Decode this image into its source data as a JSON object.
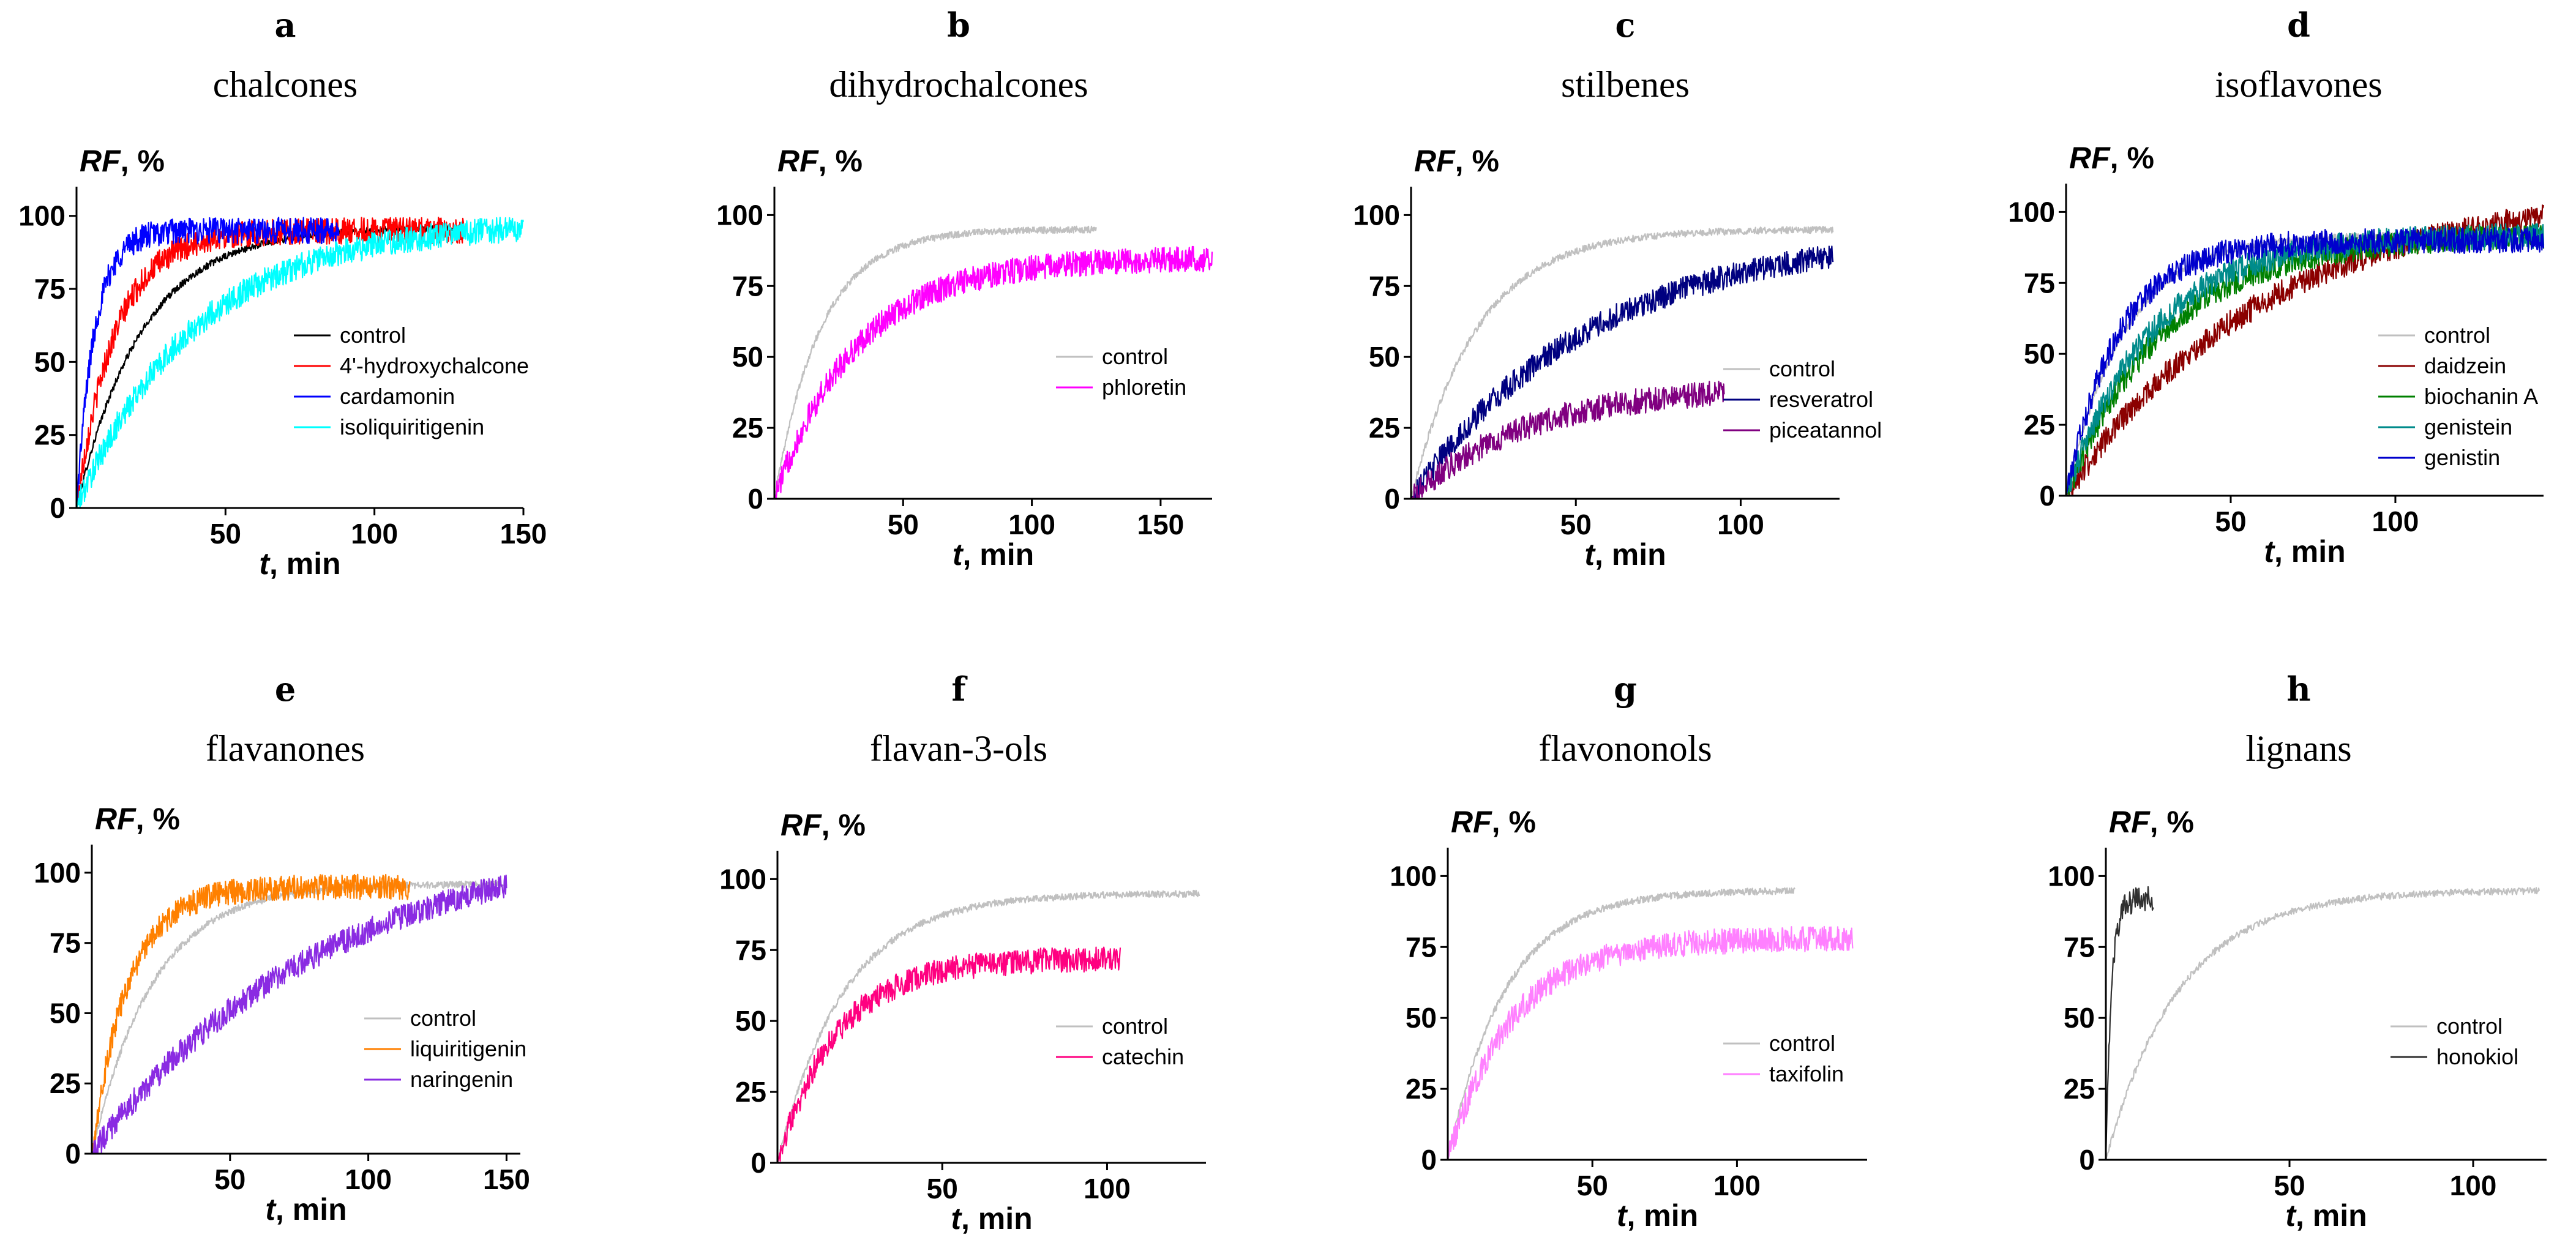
{
  "chart_data": [
    {
      "panel": "a",
      "title": "chalcones",
      "type": "line",
      "ylabel_bold": "RF",
      "ylabel_rest": ", %",
      "xlabel_bold": "t",
      "xlabel_rest": ", min",
      "xlim": [
        0,
        150
      ],
      "ylim": [
        0,
        110
      ],
      "xticks": [
        50,
        100,
        150
      ],
      "yticks": [
        0,
        25,
        50,
        75,
        100
      ],
      "series": [
        {
          "name": "control",
          "color": "#000000",
          "tmax": 130,
          "plateau": 96,
          "tau": 22
        },
        {
          "name": "4'-hydroxychalcone",
          "color": "#ff0000",
          "tmax": 130,
          "plateau": 95,
          "tau": 13
        },
        {
          "name": "cardamonin",
          "color": "#0000ff",
          "tmax": 88,
          "plateau": 95,
          "tau": 6
        },
        {
          "name": "isoliquiritigenin",
          "color": "#00ffff",
          "tmax": 150,
          "plateau": 98,
          "tau": 40
        }
      ]
    },
    {
      "panel": "b",
      "title": "dihydrochalcones",
      "type": "line",
      "ylabel_bold": "RF",
      "ylabel_rest": ", %",
      "xlabel_bold": "t",
      "xlabel_rest": ", min",
      "xlim": [
        0,
        170
      ],
      "ylim": [
        0,
        110
      ],
      "xticks": [
        50,
        100,
        150
      ],
      "yticks": [
        0,
        25,
        50,
        75,
        100
      ],
      "series": [
        {
          "name": "control",
          "color": "#c0c0c0",
          "tmax": 125,
          "plateau": 95,
          "tau": 18
        },
        {
          "name": "phloretin",
          "color": "#ff00ff",
          "tmax": 170,
          "plateau": 85,
          "tau": 32
        }
      ]
    },
    {
      "panel": "c",
      "title": "stilbenes",
      "type": "line",
      "ylabel_bold": "RF",
      "ylabel_rest": ", %",
      "xlabel_bold": "t",
      "xlabel_rest": ", min",
      "xlim": [
        0,
        130
      ],
      "ylim": [
        0,
        110
      ],
      "xticks": [
        50,
        100
      ],
      "yticks": [
        0,
        25,
        50,
        75,
        100
      ],
      "series": [
        {
          "name": "control",
          "color": "#c0c0c0",
          "tmax": 128,
          "plateau": 95,
          "tau": 20
        },
        {
          "name": "resveratrol",
          "color": "#000080",
          "tmax": 128,
          "plateau": 95,
          "tau": 55
        },
        {
          "name": "piceatannol",
          "color": "#800080",
          "tmax": 95,
          "plateau": 40,
          "tau": 35
        }
      ]
    },
    {
      "panel": "d",
      "title": "isoflavones",
      "type": "line",
      "ylabel_bold": "RF",
      "ylabel_rest": ", %",
      "xlabel_bold": "t",
      "xlabel_rest": ", min",
      "xlim": [
        0,
        145
      ],
      "ylim": [
        0,
        110
      ],
      "xticks": [
        50,
        100
      ],
      "yticks": [
        0,
        25,
        50,
        75,
        100
      ],
      "series": [
        {
          "name": "control",
          "color": "#c0c0c0",
          "tmax": 120,
          "plateau": 92,
          "tau": 18
        },
        {
          "name": "daidzein",
          "color": "#8b0000",
          "tmax": 145,
          "plateau": 108,
          "tau": 60
        },
        {
          "name": "biochanin A",
          "color": "#008000",
          "tmax": 145,
          "plateau": 92,
          "tau": 30
        },
        {
          "name": "genistein",
          "color": "#008b8b",
          "tmax": 145,
          "plateau": 92,
          "tau": 26
        },
        {
          "name": "genistin",
          "color": "#0000cd",
          "tmax": 145,
          "plateau": 90,
          "tau": 16
        }
      ]
    },
    {
      "panel": "e",
      "title": "flavanones",
      "type": "line",
      "ylabel_bold": "RF",
      "ylabel_rest": ", %",
      "xlabel_bold": "t",
      "xlabel_rest": ", min",
      "xlim": [
        0,
        155
      ],
      "ylim": [
        0,
        110
      ],
      "xticks": [
        50,
        100,
        150
      ],
      "yticks": [
        0,
        25,
        50,
        75,
        100
      ],
      "series": [
        {
          "name": "control",
          "color": "#c0c0c0",
          "tmax": 150,
          "plateau": 96,
          "tau": 22
        },
        {
          "name": "liquiritigenin",
          "color": "#ff8000",
          "tmax": 115,
          "plateau": 95,
          "tau": 13
        },
        {
          "name": "naringenin",
          "color": "#8a2be2",
          "tmax": 150,
          "plateau": 115,
          "tau": 85
        }
      ]
    },
    {
      "panel": "f",
      "title": "flavan-3-ols",
      "type": "line",
      "ylabel_bold": "RF",
      "ylabel_rest": ", %",
      "xlabel_bold": "t",
      "xlabel_rest": ", min",
      "xlim": [
        0,
        130
      ],
      "ylim": [
        0,
        110
      ],
      "xticks": [
        50,
        100
      ],
      "yticks": [
        0,
        25,
        50,
        75,
        100
      ],
      "series": [
        {
          "name": "control",
          "color": "#c0c0c0",
          "tmax": 128,
          "plateau": 95,
          "tau": 20
        },
        {
          "name": "catechin",
          "color": "#ff0080",
          "tmax": 104,
          "plateau": 72,
          "tau": 18
        }
      ]
    },
    {
      "panel": "g",
      "title": "flavononols",
      "type": "line",
      "ylabel_bold": "RF",
      "ylabel_rest": ", %",
      "xlabel_bold": "t",
      "xlabel_rest": ", min",
      "xlim": [
        0,
        145
      ],
      "ylim": [
        0,
        110
      ],
      "xticks": [
        50,
        100
      ],
      "yticks": [
        0,
        25,
        50,
        75,
        100
      ],
      "series": [
        {
          "name": "control",
          "color": "#c0c0c0",
          "tmax": 120,
          "plateau": 95,
          "tau": 20
        },
        {
          "name": "taxifolin",
          "color": "#ff80ff",
          "tmax": 140,
          "plateau": 78,
          "tau": 22
        }
      ]
    },
    {
      "panel": "h",
      "title": "lignans",
      "type": "line",
      "ylabel_bold": "RF",
      "ylabel_rest": ", %",
      "xlabel_bold": "t",
      "xlabel_rest": ", min",
      "xlim": [
        0,
        120
      ],
      "ylim": [
        0,
        110
      ],
      "xticks": [
        50,
        100
      ],
      "yticks": [
        0,
        25,
        50,
        75,
        100
      ],
      "series": [
        {
          "name": "control",
          "color": "#c0c0c0",
          "tmax": 118,
          "plateau": 95,
          "tau": 20
        },
        {
          "name": "honokiol",
          "color": "#303030",
          "tmax": 13,
          "plateau": 92,
          "tau": 1.5
        }
      ]
    }
  ]
}
